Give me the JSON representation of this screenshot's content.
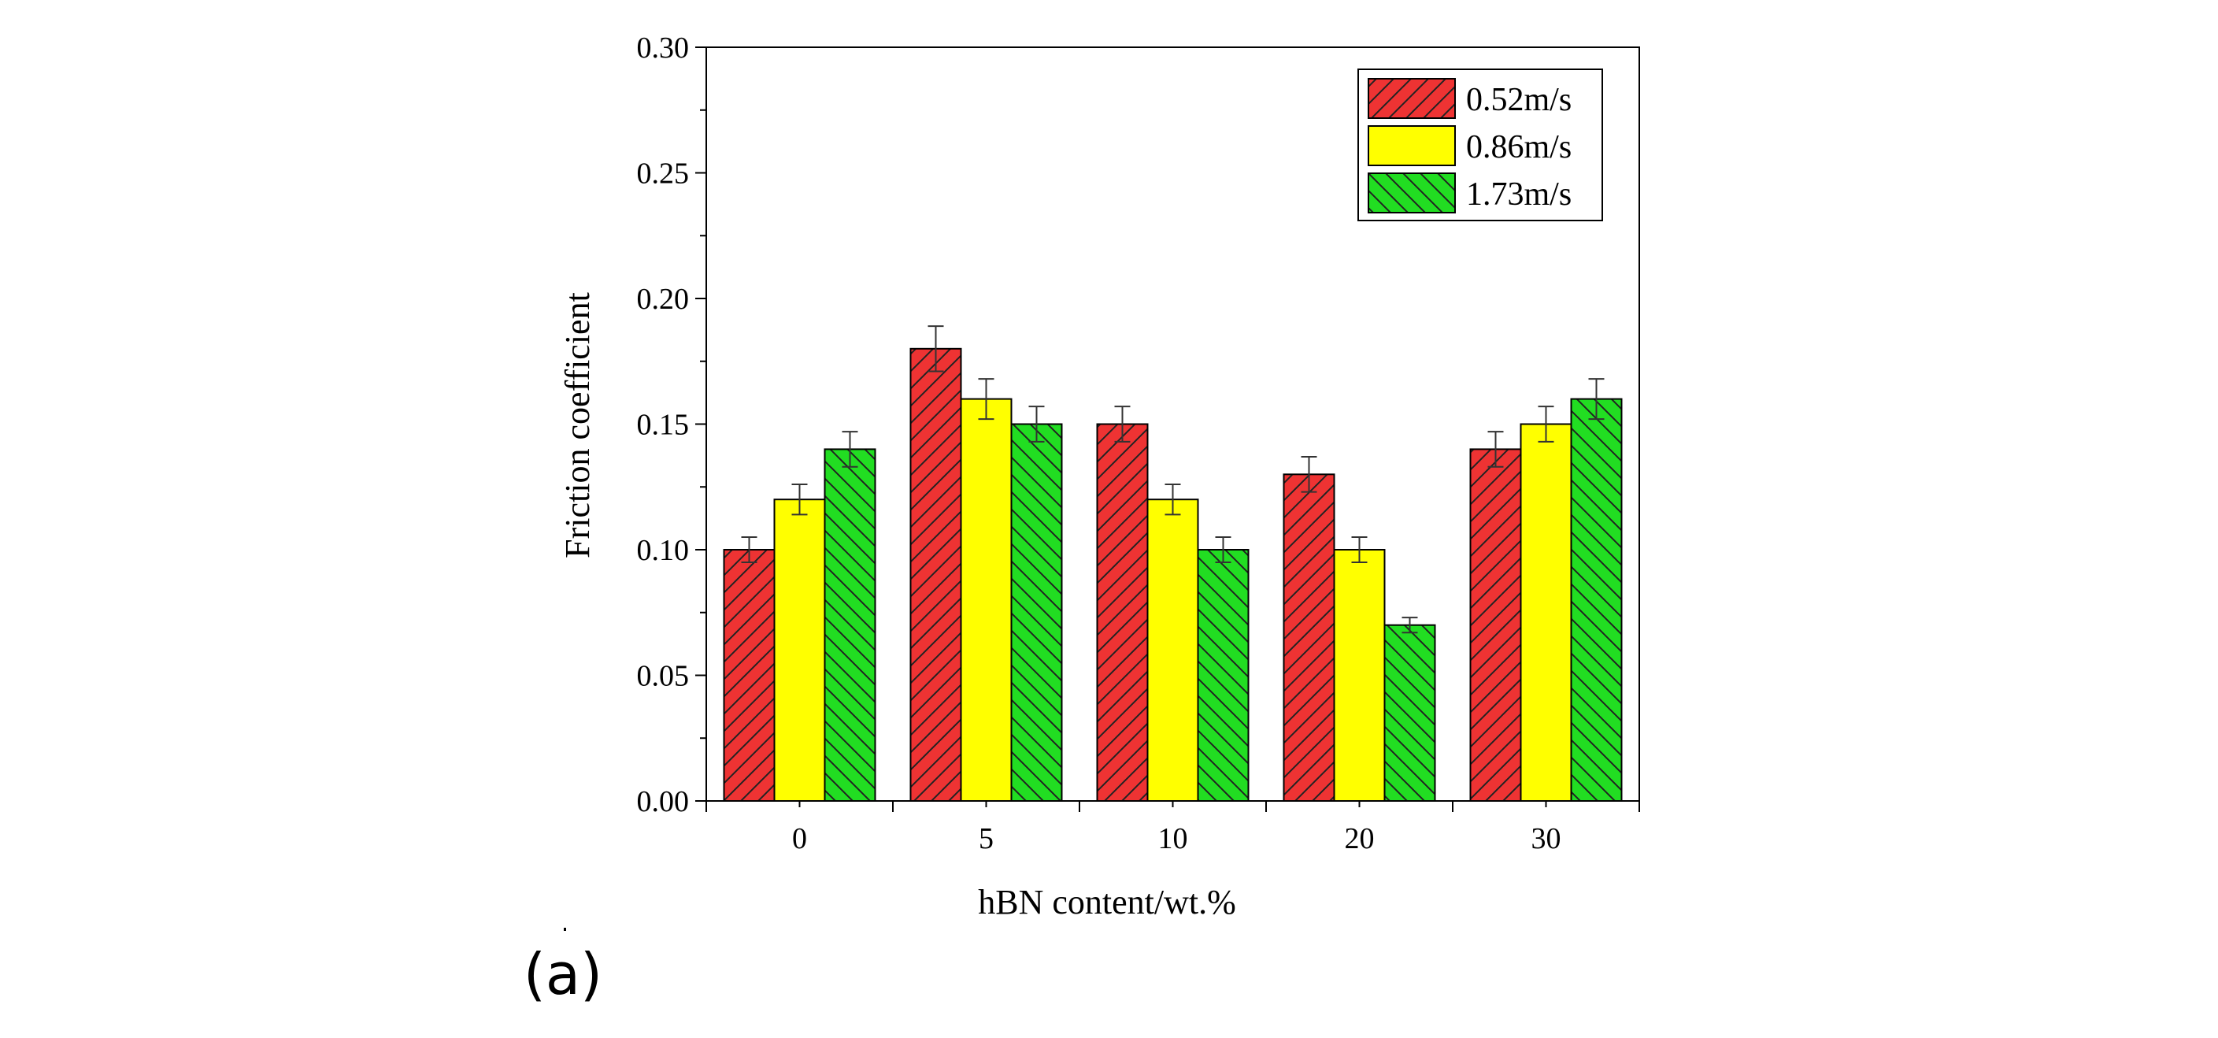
{
  "caption": "(a)",
  "colors": {
    "s1": "#ee3333",
    "s2": "#ffff00",
    "s3": "#22dd22",
    "hatch": "#222222"
  },
  "chart_data": {
    "type": "bar",
    "title": "",
    "xlabel": "hBN content/wt.%",
    "ylabel": "Friction coefficient",
    "ylim": [
      0,
      0.3
    ],
    "yticks": [
      "0.00",
      "0.05",
      "0.10",
      "0.15",
      "0.20",
      "0.25",
      "0.30"
    ],
    "categories": [
      "0",
      "5",
      "10",
      "20",
      "30"
    ],
    "legend_position": "top-right",
    "grid": false,
    "series": [
      {
        "name": "0.52m/s",
        "values": [
          0.1,
          0.18,
          0.15,
          0.13,
          0.14
        ],
        "errors": [
          0.005,
          0.009,
          0.007,
          0.007,
          0.007
        ]
      },
      {
        "name": "0.86m/s",
        "values": [
          0.12,
          0.16,
          0.12,
          0.1,
          0.15
        ],
        "errors": [
          0.006,
          0.008,
          0.006,
          0.005,
          0.007
        ]
      },
      {
        "name": "1.73m/s",
        "values": [
          0.14,
          0.15,
          0.1,
          0.07,
          0.16
        ],
        "errors": [
          0.007,
          0.007,
          0.005,
          0.003,
          0.008
        ]
      }
    ]
  }
}
